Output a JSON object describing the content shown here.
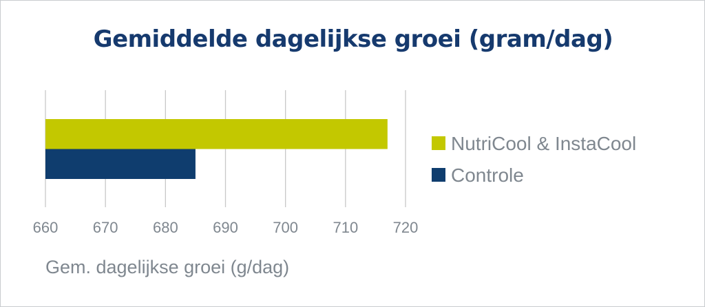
{
  "chart_data": {
    "type": "bar",
    "orientation": "horizontal",
    "title": "Gemiddelde dagelijkse groei (gram/dag)",
    "xlabel": "Gem. dagelijkse groei (g/dag)",
    "ylabel": "",
    "xlim": [
      660,
      720
    ],
    "xticks": [
      "660",
      "670",
      "680",
      "690",
      "700",
      "710",
      "720"
    ],
    "grid": true,
    "legend_position": "right",
    "series": [
      {
        "name": "NutriCool & InstaCool",
        "value": 717,
        "color": "#c3c800"
      },
      {
        "name": "Controle",
        "value": 685,
        "color": "#0f3d6e"
      }
    ]
  }
}
